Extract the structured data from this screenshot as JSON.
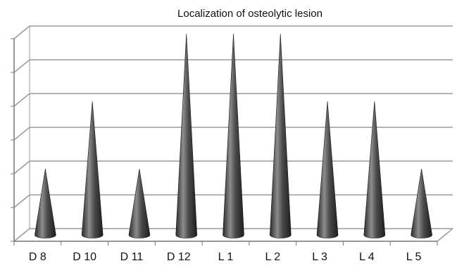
{
  "chart_data": {
    "type": "bar",
    "bar_shape": "cone",
    "title": "Localization of osteolytic lesion",
    "categories": [
      "D 8",
      "D 10",
      "D 11",
      "D 12",
      "L 1",
      "L 2",
      "L 3",
      "L 4",
      "L 5"
    ],
    "values": [
      2,
      4,
      2,
      6,
      6,
      6,
      4,
      4,
      2
    ],
    "ylim": [
      0,
      6
    ],
    "ytick_step": 1,
    "ytick_labels_shown": false,
    "xlabel": "",
    "ylabel": "",
    "grid": true,
    "legend": "none",
    "colors": {
      "bar": "#3a3a3a",
      "bar_highlight": "#8c8c8c",
      "grid": "#9a9a9a",
      "axis": "#777777"
    }
  }
}
